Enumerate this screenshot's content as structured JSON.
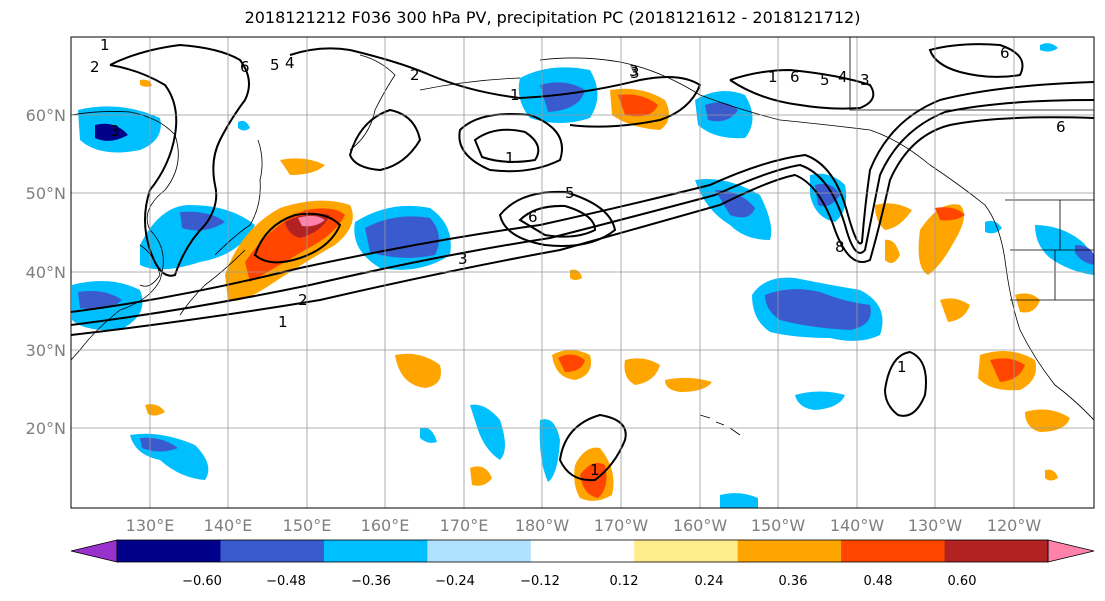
{
  "title": "2018121212 F036 300 hPa PV, precipitation PC (2018121612 - 2018121712)",
  "lat_labels": [
    "60°N",
    "50°N",
    "40°N",
    "30°N",
    "20°N"
  ],
  "lon_labels": [
    "130°E",
    "140°E",
    "150°E",
    "160°E",
    "170°E",
    "180°W",
    "170°W",
    "160°W",
    "150°W",
    "140°W",
    "130°W",
    "120°W"
  ],
  "colorbar": {
    "colors": [
      "#9932cc",
      "#00008b",
      "#3a5bcd",
      "#00bfff",
      "#b0e2ff",
      "#ffffff",
      "#ffec8b",
      "#ffa500",
      "#ff4500",
      "#b22222",
      "#ff82ab"
    ],
    "tick_labels": [
      "−0.60",
      "−0.48",
      "−0.36",
      "−0.24",
      "−0.12",
      "0.12",
      "0.24",
      "0.36",
      "0.48",
      "0.60"
    ]
  },
  "contour_labels": [
    "1",
    "2",
    "3",
    "4",
    "5",
    "6",
    "1",
    "5",
    "6",
    "3",
    "2",
    "1",
    "1",
    "2",
    "3",
    "6",
    "5",
    "4",
    "3",
    "1",
    "6",
    "6",
    "8",
    "1",
    "1",
    "3"
  ]
}
